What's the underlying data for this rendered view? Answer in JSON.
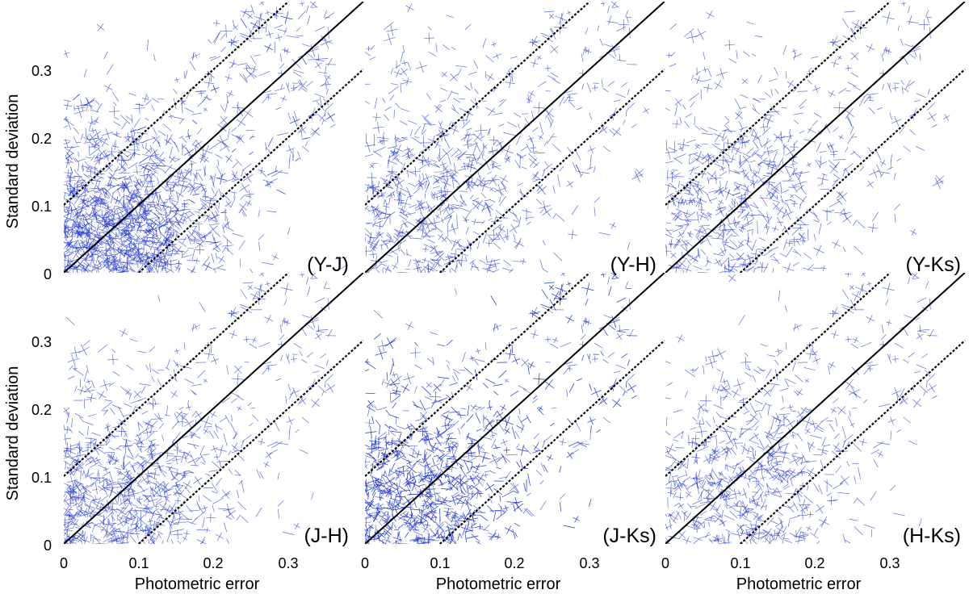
{
  "figure": {
    "ylabel": "Standard deviation",
    "xlabel": "Photometric error",
    "x_ticks": [
      "0",
      "0.1",
      "0.2",
      "0.3"
    ],
    "y_ticks": [
      "0",
      "0.1",
      "0.2",
      "0.3"
    ]
  },
  "colors": {
    "points": "#2b3fd0",
    "lines": "#000000"
  },
  "chart_data": [
    {
      "type": "scatter",
      "panel_label": "(Y-J)",
      "xlabel": "",
      "ylabel": "Standard deviation",
      "xlim": [
        0,
        0.4
      ],
      "ylim": [
        0,
        0.4
      ],
      "marker": "cross",
      "points_summary": {
        "density_center": [
          0.08,
          0.07
        ],
        "spread": [
          0.07,
          0.07
        ],
        "count_approx": 2800
      },
      "lines": [
        {
          "style": "solid",
          "x": [
            0,
            0.4
          ],
          "y": [
            0,
            0.4
          ]
        },
        {
          "style": "dotted",
          "x": [
            0,
            0.3
          ],
          "y": [
            0.1,
            0.4
          ]
        },
        {
          "style": "dotted",
          "x": [
            0.1,
            0.4
          ],
          "y": [
            0,
            0.3
          ]
        }
      ]
    },
    {
      "type": "scatter",
      "panel_label": "(Y-H)",
      "xlabel": "",
      "ylabel": "",
      "xlim": [
        0,
        0.4
      ],
      "ylim": [
        0,
        0.4
      ],
      "marker": "cross",
      "points_summary": {
        "density_center": [
          0.1,
          0.13
        ],
        "spread": [
          0.08,
          0.09
        ],
        "count_approx": 1400
      },
      "lines": [
        {
          "style": "solid",
          "x": [
            0,
            0.4
          ],
          "y": [
            0,
            0.4
          ]
        },
        {
          "style": "dotted",
          "x": [
            0,
            0.3
          ],
          "y": [
            0.1,
            0.4
          ]
        },
        {
          "style": "dotted",
          "x": [
            0.1,
            0.4
          ],
          "y": [
            0,
            0.3
          ]
        }
      ]
    },
    {
      "type": "scatter",
      "panel_label": "(Y-Ks)",
      "xlabel": "",
      "ylabel": "",
      "xlim": [
        0,
        0.4
      ],
      "ylim": [
        0,
        0.4
      ],
      "marker": "cross",
      "points_summary": {
        "density_center": [
          0.1,
          0.12
        ],
        "spread": [
          0.08,
          0.09
        ],
        "count_approx": 1300
      },
      "lines": [
        {
          "style": "solid",
          "x": [
            0,
            0.4
          ],
          "y": [
            0,
            0.4
          ]
        },
        {
          "style": "dotted",
          "x": [
            0,
            0.3
          ],
          "y": [
            0.1,
            0.4
          ]
        },
        {
          "style": "dotted",
          "x": [
            0.1,
            0.4
          ],
          "y": [
            0,
            0.3
          ]
        }
      ]
    },
    {
      "type": "scatter",
      "panel_label": "(J-H)",
      "xlabel": "Photometric error",
      "ylabel": "Standard deviation",
      "xlim": [
        0,
        0.4
      ],
      "ylim": [
        0,
        0.4
      ],
      "marker": "cross",
      "points_summary": {
        "density_center": [
          0.08,
          0.08
        ],
        "spread": [
          0.08,
          0.08
        ],
        "count_approx": 1600
      },
      "lines": [
        {
          "style": "solid",
          "x": [
            0,
            0.4
          ],
          "y": [
            0,
            0.4
          ]
        },
        {
          "style": "dotted",
          "x": [
            0,
            0.3
          ],
          "y": [
            0.1,
            0.4
          ]
        },
        {
          "style": "dotted",
          "x": [
            0.1,
            0.4
          ],
          "y": [
            0,
            0.3
          ]
        }
      ]
    },
    {
      "type": "scatter",
      "panel_label": "(J-Ks)",
      "xlabel": "Photometric error",
      "ylabel": "",
      "xlim": [
        0,
        0.4
      ],
      "ylim": [
        0,
        0.4
      ],
      "marker": "cross",
      "points_summary": {
        "density_center": [
          0.08,
          0.09
        ],
        "spread": [
          0.07,
          0.08
        ],
        "count_approx": 2600
      },
      "lines": [
        {
          "style": "solid",
          "x": [
            0,
            0.4
          ],
          "y": [
            0,
            0.4
          ]
        },
        {
          "style": "dotted",
          "x": [
            0,
            0.3
          ],
          "y": [
            0.1,
            0.4
          ]
        },
        {
          "style": "dotted",
          "x": [
            0.1,
            0.4
          ],
          "y": [
            0,
            0.3
          ]
        }
      ]
    },
    {
      "type": "scatter",
      "panel_label": "(H-Ks)",
      "xlabel": "Photometric error",
      "ylabel": "",
      "xlim": [
        0,
        0.4
      ],
      "ylim": [
        0,
        0.4
      ],
      "marker": "cross",
      "points_summary": {
        "density_center": [
          0.12,
          0.1
        ],
        "spread": [
          0.07,
          0.07
        ],
        "count_approx": 1300
      },
      "lines": [
        {
          "style": "solid",
          "x": [
            0,
            0.4
          ],
          "y": [
            0,
            0.4
          ]
        },
        {
          "style": "dotted",
          "x": [
            0,
            0.3
          ],
          "y": [
            0.1,
            0.4
          ]
        },
        {
          "style": "dotted",
          "x": [
            0.1,
            0.4
          ],
          "y": [
            0,
            0.3
          ]
        }
      ]
    }
  ]
}
